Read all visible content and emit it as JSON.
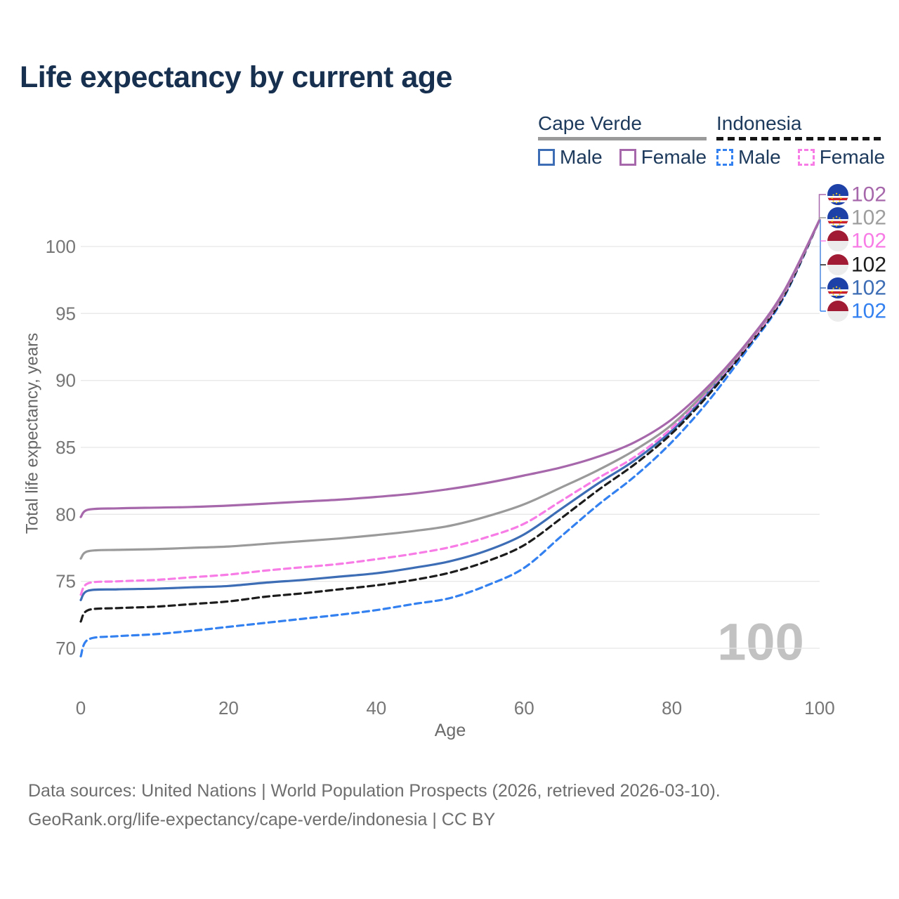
{
  "title": "Life expectancy by current age",
  "legend": {
    "groups": [
      {
        "country": "Cape Verde",
        "line_style": "solid",
        "underline_color": "#9a9a9a",
        "items": [
          {
            "label": "Male",
            "color": "#3d6db5",
            "dashed": false
          },
          {
            "label": "Female",
            "color": "#a767ab",
            "dashed": false
          }
        ]
      },
      {
        "country": "Indonesia",
        "line_style": "dashed",
        "underline_color": "#161616",
        "items": [
          {
            "label": "Male",
            "color": "#3380f0",
            "dashed": true
          },
          {
            "label": "Female",
            "color": "#f87ce6",
            "dashed": true
          }
        ]
      }
    ]
  },
  "watermark": "100",
  "footer": {
    "line1": "Data sources: United Nations | World Population Prospects (2026, retrieved 2026-03-10).",
    "line2": "GeoRank.org/life-expectancy/cape-verde/indonesia | CC BY"
  },
  "chart_data": {
    "type": "line",
    "title": "Life expectancy by current age",
    "xlabel": "Age",
    "ylabel": "Total life expectancy, years",
    "xlim": [
      0,
      100
    ],
    "ylim": [
      69,
      103
    ],
    "xticks": [
      0,
      20,
      40,
      60,
      80,
      100
    ],
    "yticks": [
      70,
      75,
      80,
      85,
      90,
      95,
      100
    ],
    "grid": "horizontal",
    "legend_position": "top-right",
    "x": [
      0,
      1,
      5,
      10,
      15,
      20,
      25,
      30,
      35,
      40,
      45,
      50,
      55,
      60,
      65,
      70,
      75,
      80,
      85,
      90,
      95,
      100
    ],
    "series": [
      {
        "name": "cape-verde-female",
        "country": "cape-verde",
        "sex": "female",
        "color": "#a767ab",
        "dash": "solid",
        "end_label": "102",
        "values": [
          79.8,
          80.35,
          80.45,
          80.5,
          80.55,
          80.65,
          80.8,
          80.95,
          81.1,
          81.3,
          81.55,
          81.9,
          82.35,
          82.9,
          83.5,
          84.3,
          85.4,
          87.1,
          89.6,
          92.7,
          96.5,
          102
        ]
      },
      {
        "name": "cape-verde-overall",
        "country": "cape-verde",
        "sex": "both",
        "color": "#9a9a9a",
        "dash": "solid",
        "end_label": "102",
        "values": [
          76.7,
          77.25,
          77.35,
          77.4,
          77.5,
          77.6,
          77.8,
          78.0,
          78.2,
          78.45,
          78.75,
          79.15,
          79.85,
          80.75,
          82.0,
          83.3,
          84.8,
          86.7,
          89.4,
          92.6,
          96.4,
          102
        ]
      },
      {
        "name": "indonesia-female",
        "country": "indonesia",
        "sex": "female",
        "color": "#f87ce6",
        "dash": "dashed",
        "end_label": "102",
        "values": [
          74.0,
          74.85,
          75.0,
          75.1,
          75.3,
          75.5,
          75.8,
          76.05,
          76.3,
          76.65,
          77.05,
          77.55,
          78.3,
          79.3,
          81.0,
          82.7,
          84.3,
          86.45,
          89.3,
          92.5,
          96.3,
          102
        ]
      },
      {
        "name": "indonesia-overall",
        "country": "indonesia",
        "sex": "both",
        "color": "#1c1c1c",
        "dash": "dashed",
        "end_label": "102",
        "values": [
          72.0,
          72.85,
          73.0,
          73.1,
          73.3,
          73.5,
          73.85,
          74.1,
          74.4,
          74.7,
          75.1,
          75.65,
          76.5,
          77.7,
          79.7,
          81.8,
          83.75,
          86.05,
          88.95,
          92.35,
          96.15,
          102
        ]
      },
      {
        "name": "cape-verde-male",
        "country": "cape-verde",
        "sex": "male",
        "color": "#3d6db5",
        "dash": "solid",
        "end_label": "102",
        "values": [
          73.6,
          74.3,
          74.4,
          74.45,
          74.55,
          74.65,
          74.9,
          75.1,
          75.35,
          75.6,
          76.0,
          76.5,
          77.3,
          78.5,
          80.4,
          82.3,
          84.05,
          86.25,
          89.15,
          92.45,
          96.25,
          102
        ]
      },
      {
        "name": "indonesia-male",
        "country": "indonesia",
        "sex": "male",
        "color": "#3380f0",
        "dash": "dashed",
        "end_label": "102",
        "values": [
          69.4,
          70.65,
          70.9,
          71.05,
          71.3,
          71.6,
          71.9,
          72.2,
          72.5,
          72.85,
          73.3,
          73.75,
          74.7,
          76.0,
          78.35,
          80.7,
          82.85,
          85.4,
          88.5,
          92.15,
          96.05,
          102
        ]
      }
    ]
  }
}
